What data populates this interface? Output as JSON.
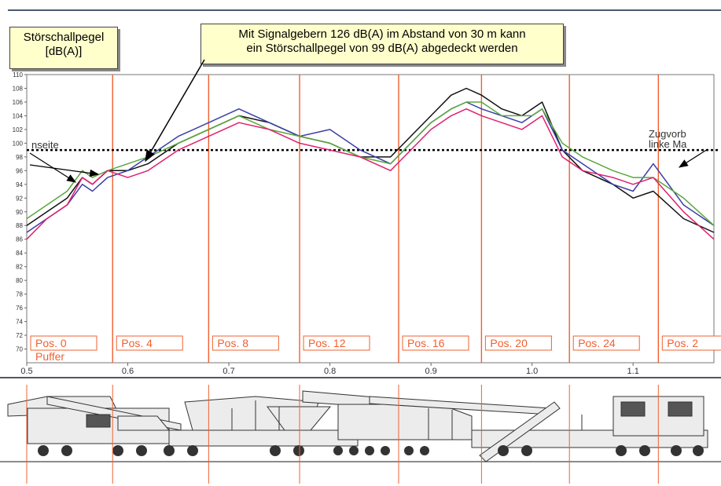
{
  "ylabel": {
    "line1": "Störschallpegel",
    "line2": "[dB(A)]"
  },
  "annotation": {
    "line1": "Mit Signalgebern 126 dB(A) im Abstand von 30 m kann",
    "line2": "ein Störschallpegel von 99 dB(A) abgedeckt werden"
  },
  "side_labels": {
    "left": "nseite",
    "right_line1": "Zugvorb",
    "right_line2": "linke Ma"
  },
  "colors": {
    "black": "#111111",
    "blue": "#3b3fa8",
    "green": "#5aa83c",
    "magenta": "#e0206e",
    "position_line": "#f06030",
    "threshold": "#000000"
  },
  "chart_data": {
    "type": "line",
    "title": "",
    "xlabel": "",
    "ylabel": "Störschallpegel [dB(A)]",
    "xlim": [
      0.5,
      1.18
    ],
    "ylim": [
      68,
      110
    ],
    "x_ticks": [
      "0.5",
      "0.6",
      "0.7",
      "0.8",
      "0.9",
      "1.0",
      "1.1"
    ],
    "y_ticks": [
      "70",
      "72",
      "74",
      "76",
      "78",
      "80",
      "82",
      "84",
      "86",
      "88",
      "90",
      "92",
      "94",
      "96",
      "98",
      "100",
      "102",
      "104",
      "106",
      "108",
      "110"
    ],
    "threshold": 99,
    "positions": [
      {
        "x": 0.5,
        "label": "Pos. 0",
        "sub": "Puffer"
      },
      {
        "x": 0.585,
        "label": "Pos. 4"
      },
      {
        "x": 0.68,
        "label": "Pos. 8"
      },
      {
        "x": 0.77,
        "label": "Pos. 12"
      },
      {
        "x": 0.868,
        "label": "Pos. 16"
      },
      {
        "x": 0.95,
        "label": "Pos. 20"
      },
      {
        "x": 1.037,
        "label": "Pos. 24"
      },
      {
        "x": 1.125,
        "label": "Pos. 2"
      }
    ],
    "series": [
      {
        "color": "black",
        "x": [
          0.5,
          0.52,
          0.54,
          0.555,
          0.565,
          0.58,
          0.6,
          0.62,
          0.65,
          0.68,
          0.71,
          0.74,
          0.77,
          0.8,
          0.83,
          0.86,
          0.88,
          0.9,
          0.92,
          0.935,
          0.95,
          0.97,
          0.99,
          1.0,
          1.01,
          1.03,
          1.05,
          1.08,
          1.1,
          1.12,
          1.15,
          1.18
        ],
        "y": [
          88,
          90,
          92,
          95,
          94,
          96,
          96,
          97,
          100,
          102,
          104,
          103,
          101,
          100,
          98,
          98,
          101,
          104,
          107,
          108,
          107,
          105,
          104,
          105,
          106,
          99,
          96,
          94,
          92,
          93,
          89,
          87
        ]
      },
      {
        "color": "blue",
        "x": [
          0.5,
          0.52,
          0.54,
          0.555,
          0.565,
          0.58,
          0.6,
          0.62,
          0.65,
          0.68,
          0.71,
          0.74,
          0.77,
          0.8,
          0.83,
          0.86,
          0.88,
          0.9,
          0.92,
          0.935,
          0.95,
          0.97,
          0.99,
          1.0,
          1.01,
          1.03,
          1.05,
          1.08,
          1.1,
          1.12,
          1.15,
          1.18
        ],
        "y": [
          87,
          89,
          91,
          94,
          93,
          95,
          96,
          98,
          101,
          103,
          105,
          103,
          101,
          102,
          99,
          97,
          100,
          103,
          105,
          106,
          105,
          104,
          103,
          104,
          105,
          99,
          97,
          94,
          93,
          97,
          91,
          88
        ]
      },
      {
        "color": "green",
        "x": [
          0.5,
          0.52,
          0.54,
          0.555,
          0.565,
          0.58,
          0.6,
          0.62,
          0.65,
          0.68,
          0.71,
          0.74,
          0.77,
          0.8,
          0.83,
          0.86,
          0.88,
          0.9,
          0.92,
          0.935,
          0.95,
          0.97,
          0.99,
          1.0,
          1.01,
          1.03,
          1.05,
          1.08,
          1.1,
          1.12,
          1.15,
          1.18
        ],
        "y": [
          89,
          91,
          93,
          96,
          95,
          96,
          97,
          98,
          100,
          102,
          104,
          102,
          101,
          100,
          98,
          97,
          100,
          103,
          105,
          106,
          106,
          104,
          104,
          104,
          105,
          100,
          98,
          96,
          95,
          95,
          92,
          88
        ]
      },
      {
        "color": "magenta",
        "x": [
          0.5,
          0.52,
          0.54,
          0.555,
          0.565,
          0.58,
          0.6,
          0.62,
          0.65,
          0.68,
          0.71,
          0.74,
          0.77,
          0.8,
          0.83,
          0.86,
          0.88,
          0.9,
          0.92,
          0.935,
          0.95,
          0.97,
          0.99,
          1.0,
          1.01,
          1.03,
          1.05,
          1.08,
          1.1,
          1.12,
          1.15,
          1.18
        ],
        "y": [
          86,
          89,
          91,
          95,
          94,
          96,
          95,
          96,
          99,
          101,
          103,
          102,
          100,
          99,
          98,
          96,
          99,
          102,
          104,
          105,
          104,
          103,
          102,
          103,
          104,
          98,
          96,
          95,
          94,
          95,
          90,
          86
        ]
      }
    ]
  }
}
